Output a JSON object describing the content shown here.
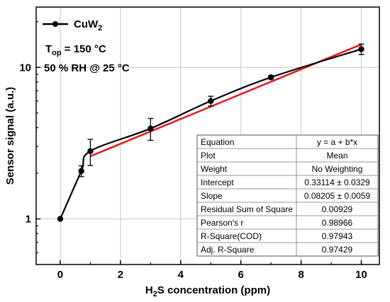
{
  "chart_data": {
    "type": "scatter",
    "title": "",
    "xlabel_main": "H",
    "xlabel_sub": "2",
    "xlabel_rest": "S concentration (ppm)",
    "ylabel": "Sensor signal (a.u.)",
    "xlim": [
      -0.8,
      10.6
    ],
    "ylim": [
      0.5,
      25
    ],
    "yscale": "log",
    "grid": true,
    "x_ticks": [
      0,
      2,
      4,
      6,
      8,
      10
    ],
    "x_tick_labels": [
      "0",
      "2",
      "4",
      "6",
      "8",
      "10"
    ],
    "y_ticks": [
      1,
      10
    ],
    "y_tick_labels": [
      "1",
      "10"
    ],
    "legend_position": "top-left",
    "series": [
      {
        "name_main": "CuW",
        "name_sub": "2",
        "color": "#000000",
        "x": [
          0,
          0.7,
          1,
          3,
          5,
          7,
          10
        ],
        "y": [
          1.0,
          2.07,
          2.8,
          3.95,
          6.0,
          8.6,
          13.2
        ],
        "y_err": [
          0,
          0.17,
          0.55,
          0.65,
          0.45,
          0.22,
          1.05
        ]
      }
    ],
    "fit_line": {
      "color": "#e41a1c",
      "x_range": [
        1,
        10
      ],
      "intercept": 0.33114,
      "slope": 0.08205
    },
    "annotations": {
      "line1_main": "T",
      "line1_sub": "op",
      "line1_rest": " = 150 °C",
      "line2": "50 % RH @ 25 °C"
    },
    "fit_table": [
      [
        "Equation",
        "y = a + b*x"
      ],
      [
        "Plot",
        "Mean"
      ],
      [
        "Weight",
        "No Weighting"
      ],
      [
        "Intercept",
        "0.33114 ± 0.0329"
      ],
      [
        "Slope",
        "0.08205 ± 0.0059"
      ],
      [
        "Residual Sum of Square",
        "0.00929"
      ],
      [
        "Pearson's r",
        "0.98966"
      ],
      [
        "R-Square(COD)",
        "0.97943"
      ],
      [
        "Adj. R-Square",
        "0.97429"
      ]
    ]
  }
}
